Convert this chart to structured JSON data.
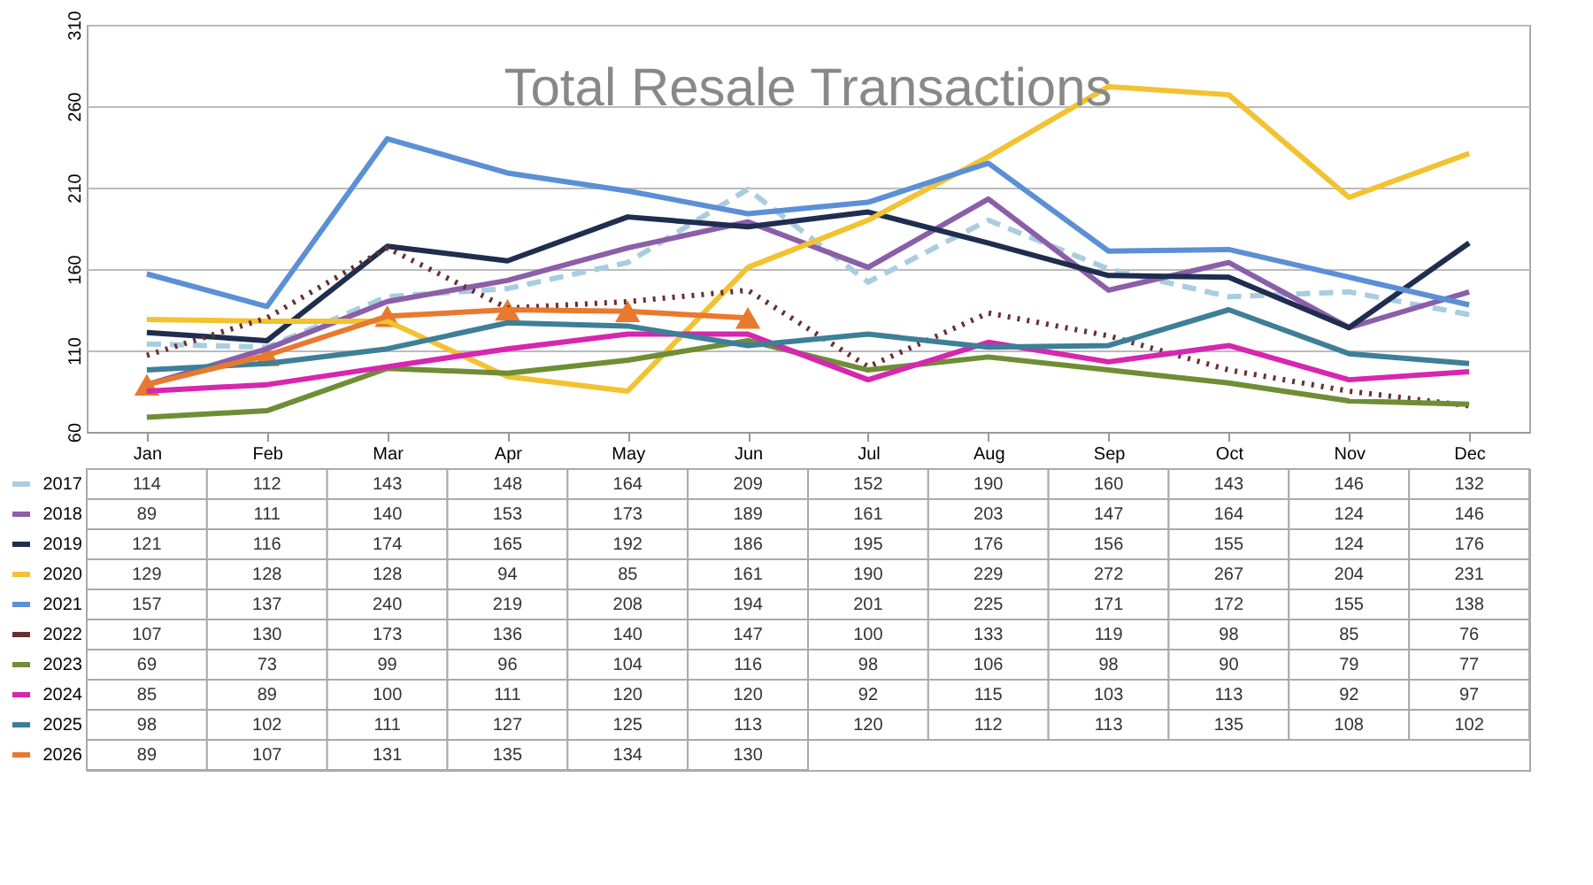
{
  "chart_data": {
    "type": "line",
    "title": "Total Resale Transactions",
    "categories": [
      "Jan",
      "Feb",
      "Mar",
      "Apr",
      "May",
      "Jun",
      "Jul",
      "Aug",
      "Sep",
      "Oct",
      "Nov",
      "Dec"
    ],
    "ylim": [
      60,
      310
    ],
    "yticks": [
      60,
      110,
      160,
      210,
      260,
      310
    ],
    "grid": "y",
    "data_labels": true,
    "line_style": "solid",
    "legend": "bottom left",
    "series": [
      {
        "name": "2017",
        "color": "#a9cde0",
        "line_style": "dashed",
        "values": [
          114,
          112,
          143,
          148,
          164,
          209,
          152,
          190,
          160,
          143,
          146,
          132
        ]
      },
      {
        "name": "2018",
        "color": "#8a5fa8",
        "values": [
          89,
          111,
          140,
          153,
          173,
          189,
          161,
          203,
          147,
          164,
          124,
          146
        ]
      },
      {
        "name": "2019",
        "color": "#1f2d4f",
        "values": [
          121,
          116,
          174,
          165,
          192,
          186,
          195,
          176,
          156,
          155,
          124,
          176
        ]
      },
      {
        "name": "2020",
        "color": "#f2c230",
        "values": [
          129,
          128,
          128,
          94,
          85,
          161,
          190,
          229,
          272,
          267,
          204,
          231
        ]
      },
      {
        "name": "2021",
        "color": "#5b8fd6",
        "values": [
          157,
          137,
          240,
          219,
          208,
          194,
          201,
          225,
          171,
          172,
          155,
          138
        ]
      },
      {
        "name": "2022",
        "color": "#6b2f2f",
        "line_style": "dotted",
        "values": [
          107,
          130,
          173,
          136,
          140,
          147,
          100,
          133,
          119,
          98,
          85,
          76
        ]
      },
      {
        "name": "2023",
        "color": "#6e8e35",
        "values": [
          69,
          73,
          99,
          96,
          104,
          116,
          98,
          106,
          98,
          90,
          79,
          77
        ]
      },
      {
        "name": "2024",
        "color": "#d726b0",
        "values": [
          85,
          89,
          100,
          111,
          120,
          120,
          92,
          115,
          103,
          113,
          92,
          97
        ]
      },
      {
        "name": "2025",
        "color": "#3e7f98",
        "values": [
          98,
          102,
          111,
          127,
          125,
          113,
          120,
          112,
          113,
          135,
          108,
          102
        ]
      },
      {
        "name": "2026",
        "color": "#e8792e",
        "marker": "triangle",
        "values": [
          89,
          107,
          131,
          135,
          134,
          130,
          null,
          null,
          null,
          null,
          null,
          null
        ]
      }
    ]
  }
}
